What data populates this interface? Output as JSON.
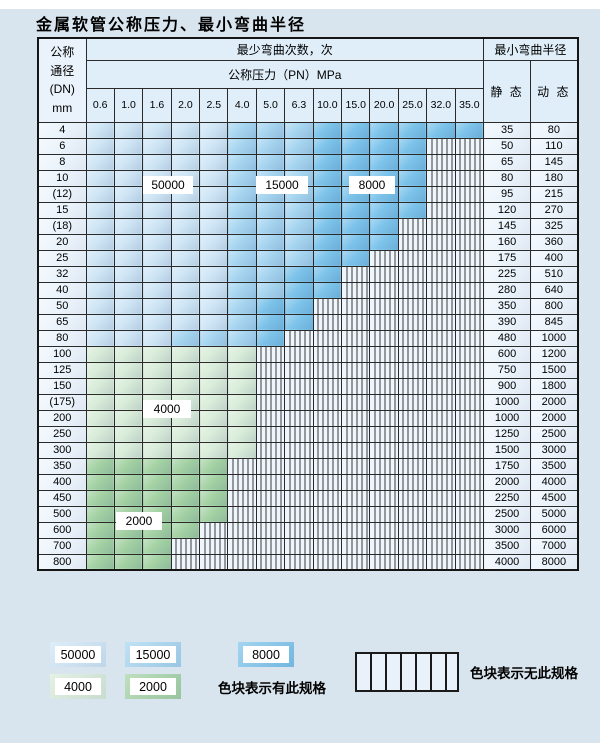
{
  "title": "金属软管公称压力、最小弯曲半径",
  "colors": {
    "page_bg": "#d9e5ee",
    "header_bg": "#dfeef9",
    "side_bg": "#eaf3fb",
    "stripe_bg": "#eef5fc",
    "b1": "#cfe6f6",
    "b2": "#a6d5f0",
    "b3": "#7cc3ea",
    "g1": "#d9ecd9",
    "g2": "#a4d2a4"
  },
  "table": {
    "corner": {
      "line1": "公称",
      "line2": "通径",
      "line3": "(DN)",
      "line4": "mm"
    },
    "bend_cycles_header": "最少弯曲次数，次",
    "bend_radius_header": "最小弯曲半径",
    "pressure_header": "公称压力（PN）MPa",
    "static_label": "静 态",
    "dynamic_label": "动 态",
    "pressures": [
      "0.6",
      "1.0",
      "1.6",
      "2.0",
      "2.5",
      "4.0",
      "5.0",
      "6.3",
      "10.0",
      "15.0",
      "20.0",
      "25.0",
      "32.0",
      "35.0"
    ],
    "rows": [
      {
        "dn": "4",
        "static": "35",
        "dynamic": "80",
        "bands": [
          [
            "b1",
            5
          ],
          [
            "b2",
            3
          ],
          [
            "b3",
            6
          ]
        ]
      },
      {
        "dn": "6",
        "static": "50",
        "dynamic": "110",
        "bands": [
          [
            "b1",
            5
          ],
          [
            "b2",
            3
          ],
          [
            "b3",
            4
          ]
        ]
      },
      {
        "dn": "8",
        "static": "65",
        "dynamic": "145",
        "bands": [
          [
            "b1",
            5
          ],
          [
            "b2",
            3
          ],
          [
            "b3",
            4
          ]
        ]
      },
      {
        "dn": "10",
        "static": "80",
        "dynamic": "180",
        "bands": [
          [
            "b1",
            5
          ],
          [
            "b2",
            3
          ],
          [
            "b3",
            4
          ]
        ]
      },
      {
        "dn": "(12)",
        "static": "95",
        "dynamic": "215",
        "bands": [
          [
            "b1",
            5
          ],
          [
            "b2",
            3
          ],
          [
            "b3",
            4
          ]
        ]
      },
      {
        "dn": "15",
        "static": "120",
        "dynamic": "270",
        "bands": [
          [
            "b1",
            5
          ],
          [
            "b2",
            3
          ],
          [
            "b3",
            4
          ]
        ]
      },
      {
        "dn": "(18)",
        "static": "145",
        "dynamic": "325",
        "bands": [
          [
            "b1",
            5
          ],
          [
            "b2",
            3
          ],
          [
            "b3",
            3
          ]
        ]
      },
      {
        "dn": "20",
        "static": "160",
        "dynamic": "360",
        "bands": [
          [
            "b1",
            5
          ],
          [
            "b2",
            3
          ],
          [
            "b3",
            3
          ]
        ]
      },
      {
        "dn": "25",
        "static": "175",
        "dynamic": "400",
        "bands": [
          [
            "b1",
            5
          ],
          [
            "b2",
            3
          ],
          [
            "b3",
            2
          ]
        ]
      },
      {
        "dn": "32",
        "static": "225",
        "dynamic": "510",
        "bands": [
          [
            "b1",
            5
          ],
          [
            "b2",
            2
          ],
          [
            "b3",
            2
          ]
        ]
      },
      {
        "dn": "40",
        "static": "280",
        "dynamic": "640",
        "bands": [
          [
            "b1",
            5
          ],
          [
            "b2",
            2
          ],
          [
            "b3",
            2
          ]
        ]
      },
      {
        "dn": "50",
        "static": "350",
        "dynamic": "800",
        "bands": [
          [
            "b1",
            5
          ],
          [
            "b2",
            1
          ],
          [
            "b3",
            2
          ]
        ]
      },
      {
        "dn": "65",
        "static": "390",
        "dynamic": "845",
        "bands": [
          [
            "b1",
            5
          ],
          [
            "b2",
            1
          ],
          [
            "b3",
            2
          ]
        ]
      },
      {
        "dn": "80",
        "static": "480",
        "dynamic": "1000",
        "bands": [
          [
            "b1",
            3
          ],
          [
            "b2",
            3
          ],
          [
            "b3",
            1
          ]
        ]
      },
      {
        "dn": "100",
        "static": "600",
        "dynamic": "1200",
        "bands": [
          [
            "g1",
            6
          ]
        ]
      },
      {
        "dn": "125",
        "static": "750",
        "dynamic": "1500",
        "bands": [
          [
            "g1",
            6
          ]
        ]
      },
      {
        "dn": "150",
        "static": "900",
        "dynamic": "1800",
        "bands": [
          [
            "g1",
            6
          ]
        ]
      },
      {
        "dn": "(175)",
        "static": "1000",
        "dynamic": "2000",
        "bands": [
          [
            "g1",
            6
          ]
        ]
      },
      {
        "dn": "200",
        "static": "1000",
        "dynamic": "2000",
        "bands": [
          [
            "g1",
            6
          ]
        ]
      },
      {
        "dn": "250",
        "static": "1250",
        "dynamic": "2500",
        "bands": [
          [
            "g1",
            6
          ]
        ]
      },
      {
        "dn": "300",
        "static": "1500",
        "dynamic": "3000",
        "bands": [
          [
            "g1",
            6
          ]
        ]
      },
      {
        "dn": "350",
        "static": "1750",
        "dynamic": "3500",
        "bands": [
          [
            "g2",
            5
          ]
        ]
      },
      {
        "dn": "400",
        "static": "2000",
        "dynamic": "4000",
        "bands": [
          [
            "g2",
            5
          ]
        ]
      },
      {
        "dn": "450",
        "static": "2250",
        "dynamic": "4500",
        "bands": [
          [
            "g2",
            5
          ]
        ]
      },
      {
        "dn": "500",
        "static": "2500",
        "dynamic": "5000",
        "bands": [
          [
            "g2",
            5
          ]
        ]
      },
      {
        "dn": "600",
        "static": "3000",
        "dynamic": "6000",
        "bands": [
          [
            "g2",
            4
          ]
        ]
      },
      {
        "dn": "700",
        "static": "3500",
        "dynamic": "7000",
        "bands": [
          [
            "g2",
            3
          ]
        ]
      },
      {
        "dn": "800",
        "static": "4000",
        "dynamic": "8000",
        "bands": [
          [
            "g2",
            3
          ]
        ]
      }
    ]
  },
  "overlay_labels": [
    {
      "text": "50000",
      "zone": "b1"
    },
    {
      "text": "15000",
      "zone": "b2"
    },
    {
      "text": "8000",
      "zone": "b3"
    },
    {
      "text": "4000",
      "zone": "g1"
    },
    {
      "text": "2000",
      "zone": "g2"
    }
  ],
  "legend": {
    "items": [
      {
        "value": "50000",
        "color_key": "b1"
      },
      {
        "value": "15000",
        "color_key": "b2"
      },
      {
        "value": "8000",
        "color_key": "b3"
      },
      {
        "value": "4000",
        "color_key": "g1"
      },
      {
        "value": "2000",
        "color_key": "g2"
      }
    ],
    "has_spec_text": "色块表示有此规格",
    "no_spec_text": "色块表示无此规格"
  }
}
